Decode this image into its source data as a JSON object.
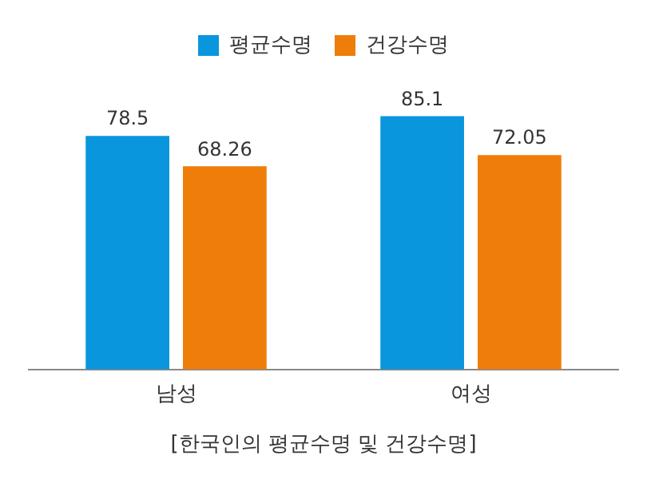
{
  "chart_data": {
    "type": "bar",
    "categories": [
      "남성",
      "여성"
    ],
    "series": [
      {
        "name": "평균수명",
        "color": "#0a96dc",
        "values": [
          78.5,
          85.1
        ]
      },
      {
        "name": "건강수명",
        "color": "#ef7d0a",
        "values": [
          68.26,
          72.05
        ]
      }
    ],
    "data_labels": true,
    "legend": "top",
    "grid": false,
    "annotations": [
      "[한국인의 평균수명 및 건강수명]"
    ]
  }
}
